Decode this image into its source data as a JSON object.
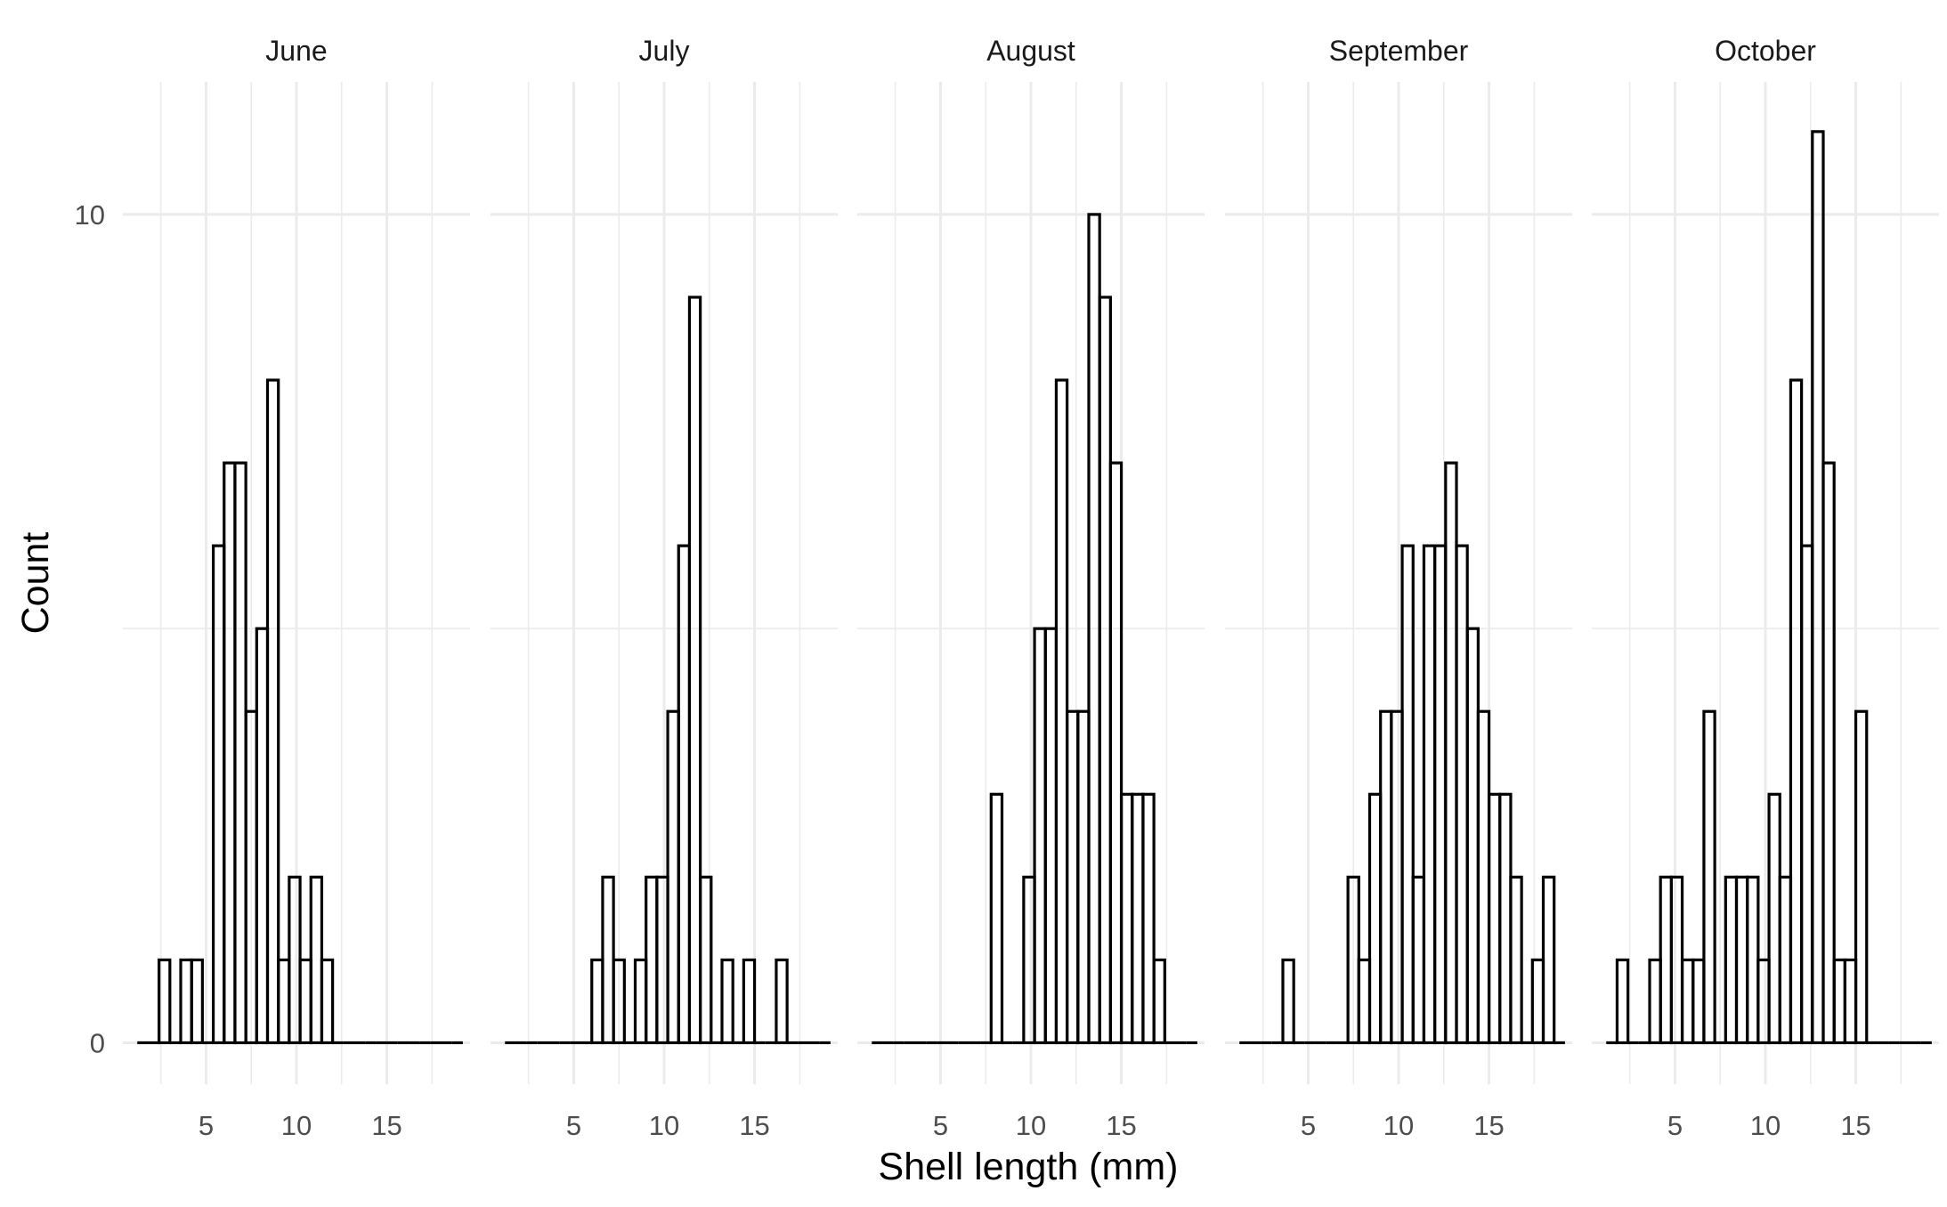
{
  "chart_data": {
    "type": "bar",
    "subtype": "faceted step histogram",
    "xlabel": "Shell length (mm)",
    "ylabel": "Count",
    "xlim": [
      0.4,
      19.6
    ],
    "ylim": [
      -0.5,
      11.6
    ],
    "x_ticks": [
      5,
      10,
      15
    ],
    "y_ticks": [
      0,
      10
    ],
    "grid": true,
    "bin_width": 0.6,
    "bin_starts": [
      1.2,
      1.8,
      2.4,
      3.0,
      3.6,
      4.2,
      4.8,
      5.4,
      6.0,
      6.6,
      7.2,
      7.8,
      8.4,
      9.0,
      9.6,
      10.2,
      10.8,
      11.4,
      12.0,
      12.6,
      13.2,
      13.8,
      14.4,
      15.0,
      15.6,
      16.2,
      16.8,
      17.4,
      18.0,
      18.6
    ],
    "panels": [
      {
        "title": "June",
        "counts": [
          0,
          0,
          1,
          0,
          1,
          1,
          0,
          6,
          7,
          7,
          4,
          5,
          8,
          1,
          2,
          1,
          2,
          1,
          0,
          0,
          0,
          0,
          0,
          0,
          0,
          0,
          0,
          0,
          0,
          0
        ]
      },
      {
        "title": "July",
        "counts": [
          0,
          0,
          0,
          0,
          0,
          0,
          0,
          0,
          1,
          2,
          1,
          0,
          1,
          2,
          2,
          4,
          6,
          9,
          2,
          0,
          1,
          0,
          1,
          0,
          0,
          1,
          0,
          0,
          0,
          0
        ]
      },
      {
        "title": "August",
        "counts": [
          0,
          0,
          0,
          0,
          0,
          0,
          0,
          0,
          0,
          0,
          0,
          3,
          0,
          0,
          2,
          5,
          5,
          8,
          4,
          4,
          10,
          9,
          7,
          3,
          3,
          3,
          1,
          0,
          0,
          0
        ]
      },
      {
        "title": "September",
        "counts": [
          0,
          0,
          0,
          0,
          1,
          0,
          0,
          0,
          0,
          0,
          2,
          1,
          3,
          4,
          4,
          6,
          2,
          6,
          6,
          7,
          6,
          5,
          4,
          3,
          3,
          2,
          0,
          1,
          2,
          0
        ]
      },
      {
        "title": "October",
        "counts": [
          0,
          1,
          0,
          0,
          1,
          2,
          2,
          1,
          1,
          4,
          0,
          2,
          2,
          2,
          1,
          3,
          2,
          8,
          6,
          11,
          7,
          1,
          1,
          4,
          0,
          0,
          0,
          0,
          0,
          0
        ]
      }
    ]
  }
}
